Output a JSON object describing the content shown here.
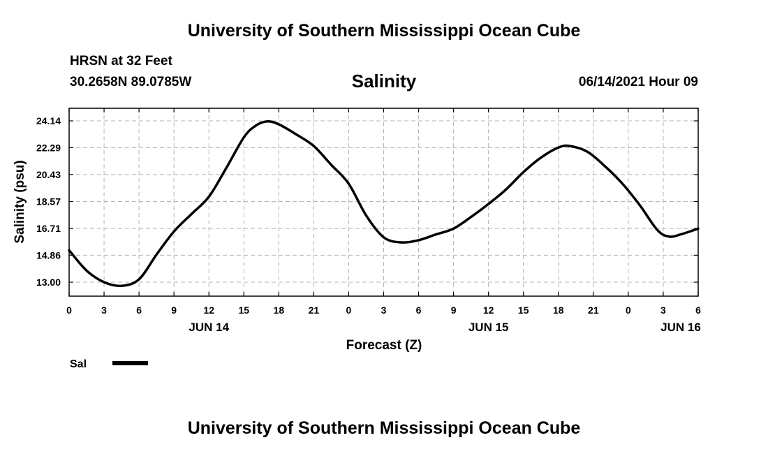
{
  "header": {
    "title_top": "University of Southern Mississippi Ocean Cube",
    "station": "HRSN at 32 Feet",
    "coords": "30.2658N  89.0785W",
    "variable": "Salinity",
    "datetime": "06/14/2021 Hour 09",
    "title_bottom": "University of Southern Mississippi Ocean Cube"
  },
  "chart_data": {
    "type": "line",
    "title": "Salinity",
    "xlabel": "Forecast (Z)",
    "ylabel": "Salinity (psu)",
    "xlim": [
      0,
      54
    ],
    "ylim": [
      12.0,
      25.0
    ],
    "x_ticks": [
      0,
      3,
      6,
      9,
      12,
      15,
      18,
      21,
      24,
      27,
      30,
      33,
      36,
      39,
      42,
      45,
      48,
      51,
      54
    ],
    "x_tick_labels": [
      "0",
      "3",
      "6",
      "9",
      "12",
      "15",
      "18",
      "21",
      "0",
      "3",
      "6",
      "9",
      "12",
      "15",
      "18",
      "21",
      "0",
      "3",
      "6"
    ],
    "date_labels": [
      {
        "x": 12,
        "text": "JUN 14"
      },
      {
        "x": 36,
        "text": "JUN 15"
      },
      {
        "x": 52.5,
        "text": "JUN 16"
      }
    ],
    "y_ticks": [
      13.0,
      14.86,
      16.71,
      18.57,
      20.43,
      22.29,
      24.14
    ],
    "y_tick_labels": [
      "13.00",
      "14.86",
      "16.71",
      "18.57",
      "20.43",
      "22.29",
      "24.14"
    ],
    "grid": true,
    "legend": {
      "position": "bottom-left",
      "entries": [
        "Sal"
      ]
    },
    "series": [
      {
        "name": "Sal",
        "color": "#000000",
        "x": [
          0,
          1.5,
          3,
          4.5,
          6,
          7.5,
          9,
          10.5,
          12,
          13.5,
          15,
          16,
          17,
          18,
          19.5,
          21,
          22.5,
          24,
          25.5,
          27,
          28.5,
          30,
          31.5,
          33,
          34.5,
          36,
          37.5,
          39,
          40.5,
          42,
          43,
          44.5,
          46,
          47.5,
          49,
          50.5,
          51.5,
          52.5,
          54
        ],
        "values": [
          15.2,
          13.8,
          13.0,
          12.75,
          13.2,
          14.9,
          16.5,
          17.7,
          18.9,
          20.9,
          23.0,
          23.8,
          24.1,
          23.9,
          23.2,
          22.4,
          21.1,
          19.8,
          17.6,
          16.1,
          15.75,
          15.9,
          16.3,
          16.7,
          17.5,
          18.4,
          19.4,
          20.6,
          21.6,
          22.3,
          22.4,
          22.0,
          21.0,
          19.8,
          18.3,
          16.6,
          16.15,
          16.3,
          16.7
        ]
      }
    ]
  }
}
